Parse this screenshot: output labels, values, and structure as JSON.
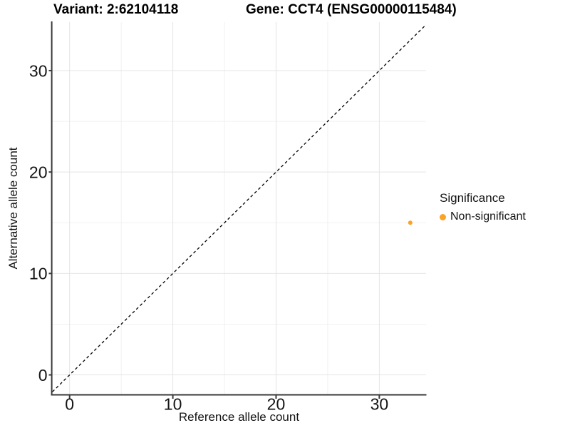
{
  "title": {
    "variant_label": "Variant: 2:62104118",
    "gene_label": "Gene: CCT4 (ENSG00000115484)"
  },
  "legend": {
    "title": "Significance",
    "items": [
      {
        "label": "Non-significant",
        "color": "#FAA327",
        "marker": "circle"
      }
    ]
  },
  "colors": {
    "point": "#FAA327",
    "axis_line": "#3A3A3A",
    "tick": "#3A3A3A",
    "grid_major": "#E4E4E4",
    "grid_minor": "#F1F1F1",
    "text": "#141414",
    "reference_line": "#000000",
    "background": "#FFFFFF"
  },
  "chart_data": {
    "type": "scatter",
    "title": "Variant: 2:62104118 | Gene: CCT4 (ENSG00000115484)",
    "xlabel": "Reference allele count",
    "ylabel": "Alternative allele count",
    "xlim": [
      -1.67,
      34.53
    ],
    "ylim": [
      -1.93,
      34.78
    ],
    "x_major_ticks": [
      0,
      10,
      20,
      30
    ],
    "y_major_ticks": [
      0,
      10,
      20,
      30
    ],
    "x_minor_ticks": [
      5,
      15,
      25
    ],
    "y_minor_ticks": [
      5,
      15,
      25
    ],
    "grid": "major+minor",
    "legend_position": "right",
    "legend_title": "Significance",
    "series": [
      {
        "name": "Non-significant",
        "color": "#FAA327",
        "marker": "circle",
        "points": [
          {
            "x": 33,
            "y": 15
          }
        ]
      }
    ],
    "reference_line": {
      "slope": 1,
      "intercept": 0,
      "style": "dashed",
      "color": "#000000"
    }
  }
}
